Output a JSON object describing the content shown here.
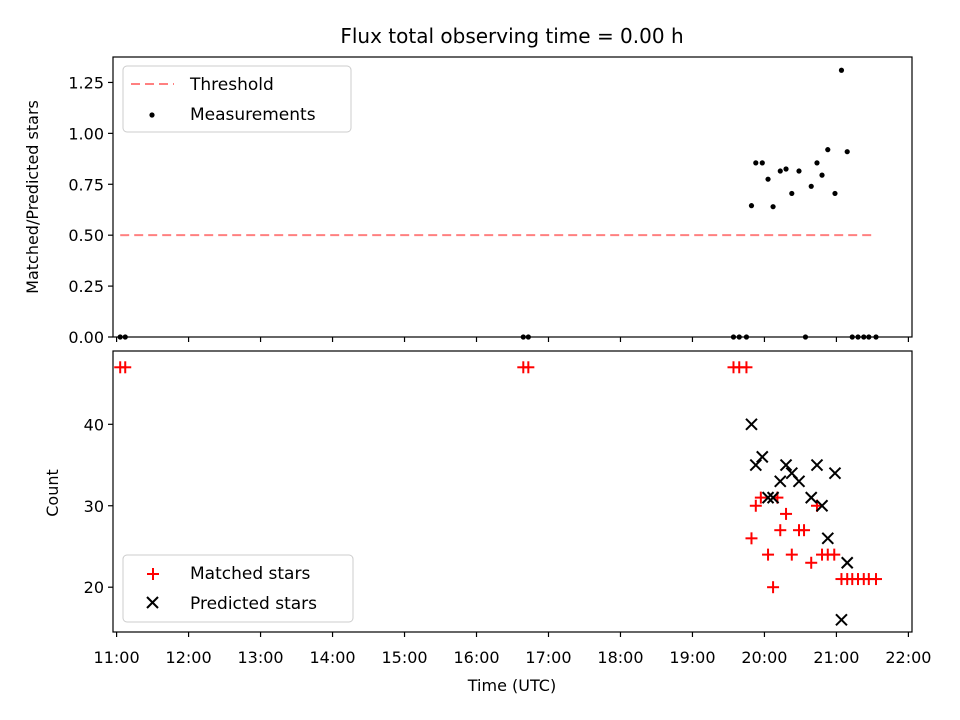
{
  "chart_data": [
    {
      "type": "scatter",
      "title": "Flux total observing time = 0.00 h",
      "xlabel": "",
      "ylabel": "Matched/Predicted stars",
      "xlim": [
        10.95,
        22.05
      ],
      "ylim": [
        0.0,
        1.375
      ],
      "yticks": [
        "0.00",
        "0.25",
        "0.50",
        "0.75",
        "1.00",
        "1.25"
      ],
      "legend": {
        "placement": "top-left",
        "entries": [
          {
            "label": "Threshold",
            "marker": "dashed-line",
            "color": "#ff8080"
          },
          {
            "label": "Measurements",
            "marker": "dot",
            "color": "#000000"
          }
        ]
      },
      "threshold": {
        "name": "Threshold",
        "y": 0.5,
        "x_start": 11.05,
        "x_end": 21.55,
        "color": "#ff8080"
      },
      "series": [
        {
          "name": "Measurements",
          "color": "#000000",
          "points": [
            [
              11.05,
              0.0
            ],
            [
              11.12,
              0.0
            ],
            [
              16.65,
              0.0
            ],
            [
              16.72,
              0.0
            ],
            [
              19.57,
              0.0
            ],
            [
              19.65,
              0.0
            ],
            [
              19.75,
              0.0
            ],
            [
              19.82,
              0.645
            ],
            [
              19.88,
              0.855
            ],
            [
              19.97,
              0.855
            ],
            [
              20.05,
              0.775
            ],
            [
              20.12,
              0.64
            ],
            [
              20.22,
              0.815
            ],
            [
              20.3,
              0.825
            ],
            [
              20.38,
              0.705
            ],
            [
              20.48,
              0.815
            ],
            [
              20.57,
              0.0
            ],
            [
              20.65,
              0.74
            ],
            [
              20.73,
              0.855
            ],
            [
              20.8,
              0.795
            ],
            [
              20.88,
              0.92
            ],
            [
              20.98,
              0.705
            ],
            [
              21.07,
              1.31
            ],
            [
              21.15,
              0.91
            ],
            [
              21.22,
              0.0
            ],
            [
              21.3,
              0.0
            ],
            [
              21.38,
              0.0
            ],
            [
              21.45,
              0.0
            ],
            [
              21.55,
              0.0
            ]
          ]
        }
      ]
    },
    {
      "type": "scatter",
      "title": "",
      "xlabel": "Time (UTC)",
      "ylabel": "Count",
      "xlim": [
        10.95,
        22.05
      ],
      "ylim": [
        14.5,
        49.0
      ],
      "yticks": [
        "20",
        "30",
        "40"
      ],
      "xticks": [
        "11:00",
        "12:00",
        "13:00",
        "14:00",
        "15:00",
        "16:00",
        "17:00",
        "18:00",
        "19:00",
        "20:00",
        "21:00",
        "22:00"
      ],
      "legend": {
        "placement": "bottom-left",
        "entries": [
          {
            "label": "Matched stars",
            "marker": "plus",
            "color": "#ff0000"
          },
          {
            "label": "Predicted stars",
            "marker": "x",
            "color": "#000000"
          }
        ]
      },
      "series": [
        {
          "name": "Matched stars",
          "color": "#ff0000",
          "points": [
            [
              11.05,
              47
            ],
            [
              11.12,
              47
            ],
            [
              16.65,
              47
            ],
            [
              16.72,
              47
            ],
            [
              19.57,
              47
            ],
            [
              19.65,
              47
            ],
            [
              19.75,
              47
            ],
            [
              19.82,
              26
            ],
            [
              19.88,
              30
            ],
            [
              19.95,
              31
            ],
            [
              20.05,
              24
            ],
            [
              20.12,
              20
            ],
            [
              20.18,
              31
            ],
            [
              20.22,
              27
            ],
            [
              20.3,
              29
            ],
            [
              20.38,
              24
            ],
            [
              20.48,
              27
            ],
            [
              20.55,
              27
            ],
            [
              20.65,
              23
            ],
            [
              20.73,
              30
            ],
            [
              20.8,
              24
            ],
            [
              20.88,
              24
            ],
            [
              20.97,
              24
            ],
            [
              21.07,
              21
            ],
            [
              21.15,
              21
            ],
            [
              21.22,
              21
            ],
            [
              21.3,
              21
            ],
            [
              21.38,
              21
            ],
            [
              21.45,
              21
            ],
            [
              21.55,
              21
            ]
          ]
        },
        {
          "name": "Predicted stars",
          "color": "#000000",
          "points": [
            [
              19.82,
              40
            ],
            [
              19.88,
              35
            ],
            [
              19.97,
              36
            ],
            [
              20.05,
              31
            ],
            [
              20.12,
              31
            ],
            [
              20.22,
              33
            ],
            [
              20.3,
              35
            ],
            [
              20.38,
              34
            ],
            [
              20.48,
              33
            ],
            [
              20.65,
              31
            ],
            [
              20.73,
              35
            ],
            [
              20.8,
              30
            ],
            [
              20.88,
              26
            ],
            [
              20.98,
              34
            ],
            [
              21.07,
              16
            ],
            [
              21.15,
              23
            ]
          ]
        }
      ]
    }
  ]
}
